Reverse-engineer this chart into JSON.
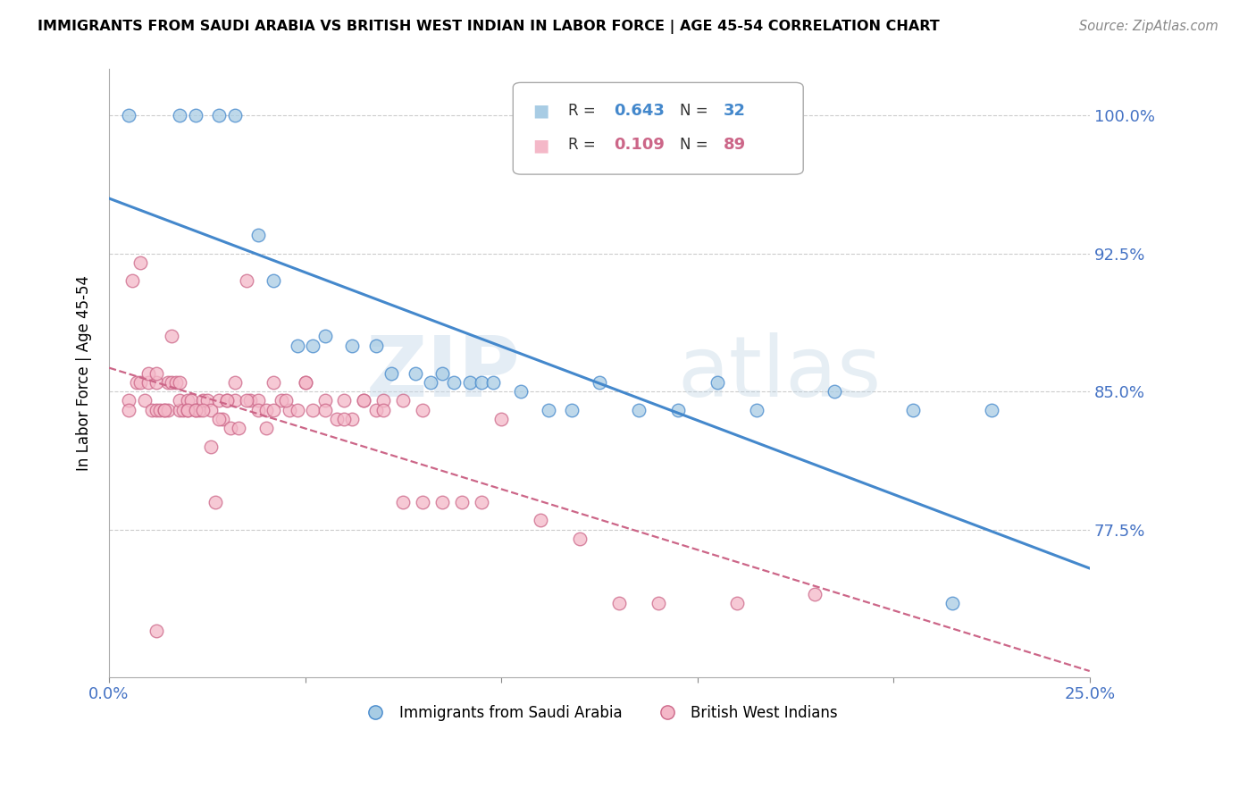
{
  "title": "IMMIGRANTS FROM SAUDI ARABIA VS BRITISH WEST INDIAN IN LABOR FORCE | AGE 45-54 CORRELATION CHART",
  "source": "Source: ZipAtlas.com",
  "ylabel": "In Labor Force | Age 45-54",
  "R_saudi": 0.643,
  "N_saudi": 32,
  "R_bwi": 0.109,
  "N_bwi": 89,
  "legend_label_saudi": "Immigrants from Saudi Arabia",
  "legend_label_bwi": "British West Indians",
  "color_saudi": "#a8cce4",
  "color_bwi": "#f4b8c8",
  "trendline_color_saudi": "#4488cc",
  "trendline_color_bwi": "#cc6688",
  "xmin": 0.0,
  "xmax": 0.25,
  "ymin": 0.695,
  "ymax": 1.025,
  "yticks": [
    0.775,
    0.85,
    0.925,
    1.0
  ],
  "ytick_labels": [
    "77.5%",
    "85.0%",
    "92.5%",
    "100.0%"
  ],
  "xticks": [
    0.0,
    0.05,
    0.1,
    0.15,
    0.2,
    0.25
  ],
  "watermark_zip": "ZIP",
  "watermark_atlas": "atlas",
  "saudi_x": [
    0.005,
    0.018,
    0.022,
    0.028,
    0.032,
    0.038,
    0.042,
    0.048,
    0.052,
    0.055,
    0.062,
    0.068,
    0.072,
    0.078,
    0.082,
    0.085,
    0.088,
    0.092,
    0.095,
    0.098,
    0.105,
    0.112,
    0.118,
    0.125,
    0.135,
    0.145,
    0.155,
    0.165,
    0.185,
    0.205,
    0.225,
    0.215
  ],
  "saudi_y": [
    1.0,
    1.0,
    1.0,
    1.0,
    1.0,
    0.935,
    0.91,
    0.875,
    0.875,
    0.88,
    0.875,
    0.875,
    0.86,
    0.86,
    0.855,
    0.86,
    0.855,
    0.855,
    0.855,
    0.855,
    0.85,
    0.84,
    0.84,
    0.855,
    0.84,
    0.84,
    0.855,
    0.84,
    0.85,
    0.84,
    0.84,
    0.735
  ],
  "bwi_x": [
    0.005,
    0.005,
    0.007,
    0.008,
    0.009,
    0.01,
    0.011,
    0.012,
    0.012,
    0.013,
    0.014,
    0.015,
    0.015,
    0.016,
    0.017,
    0.018,
    0.018,
    0.019,
    0.02,
    0.02,
    0.021,
    0.022,
    0.023,
    0.024,
    0.025,
    0.026,
    0.027,
    0.028,
    0.029,
    0.03,
    0.031,
    0.032,
    0.033,
    0.035,
    0.036,
    0.038,
    0.04,
    0.042,
    0.044,
    0.046,
    0.048,
    0.05,
    0.052,
    0.055,
    0.058,
    0.06,
    0.062,
    0.065,
    0.068,
    0.07,
    0.075,
    0.08,
    0.085,
    0.09,
    0.095,
    0.1,
    0.11,
    0.12,
    0.13,
    0.14,
    0.16,
    0.18,
    0.006,
    0.008,
    0.01,
    0.012,
    0.014,
    0.016,
    0.018,
    0.02,
    0.022,
    0.024,
    0.026,
    0.028,
    0.03,
    0.032,
    0.035,
    0.038,
    0.04,
    0.042,
    0.045,
    0.05,
    0.055,
    0.06,
    0.065,
    0.07,
    0.075,
    0.08,
    0.012
  ],
  "bwi_y": [
    0.845,
    0.84,
    0.855,
    0.855,
    0.845,
    0.855,
    0.84,
    0.855,
    0.84,
    0.84,
    0.84,
    0.855,
    0.84,
    0.855,
    0.855,
    0.84,
    0.845,
    0.84,
    0.845,
    0.84,
    0.845,
    0.84,
    0.84,
    0.845,
    0.845,
    0.84,
    0.79,
    0.845,
    0.835,
    0.845,
    0.83,
    0.845,
    0.83,
    0.91,
    0.845,
    0.845,
    0.83,
    0.855,
    0.845,
    0.84,
    0.84,
    0.855,
    0.84,
    0.845,
    0.835,
    0.845,
    0.835,
    0.845,
    0.84,
    0.845,
    0.79,
    0.79,
    0.79,
    0.79,
    0.79,
    0.835,
    0.78,
    0.77,
    0.735,
    0.735,
    0.735,
    0.74,
    0.91,
    0.92,
    0.86,
    0.86,
    0.84,
    0.88,
    0.855,
    0.84,
    0.84,
    0.84,
    0.82,
    0.835,
    0.845,
    0.855,
    0.845,
    0.84,
    0.84,
    0.84,
    0.845,
    0.855,
    0.84,
    0.835,
    0.845,
    0.84,
    0.845,
    0.84,
    0.72
  ]
}
